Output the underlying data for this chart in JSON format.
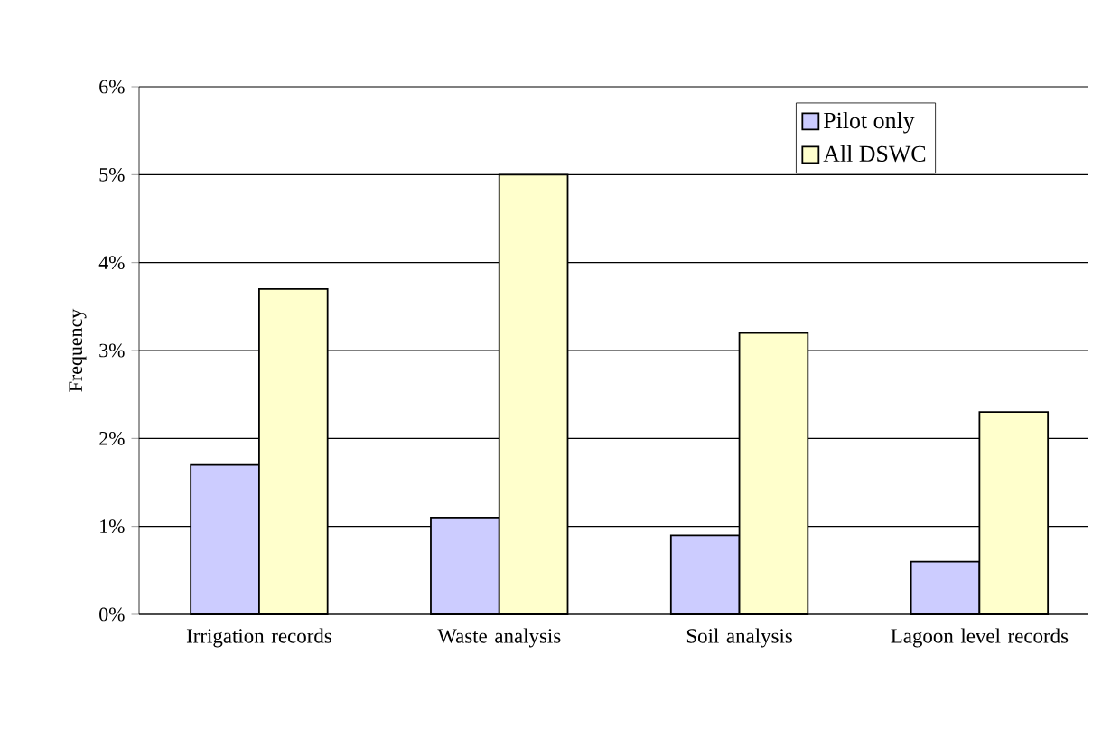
{
  "chart_data": {
    "type": "bar",
    "ylabel": "Frequency",
    "categories": [
      "Irrigation records",
      "Waste analysis",
      "Soil analysis",
      "Lagoon level records"
    ],
    "series": [
      {
        "name": "Pilot only",
        "color": "#ccccff",
        "values": [
          1.7,
          1.1,
          0.9,
          0.6
        ]
      },
      {
        "name": "All DSWC",
        "color": "#ffffcc",
        "values": [
          3.7,
          5.0,
          3.2,
          2.3
        ]
      }
    ],
    "ylim": [
      0,
      6
    ],
    "yticks": [
      {
        "value": 0,
        "label": "0%"
      },
      {
        "value": 1,
        "label": "1%"
      },
      {
        "value": 2,
        "label": "2%"
      },
      {
        "value": 3,
        "label": "3%"
      },
      {
        "value": 4,
        "label": "4%"
      },
      {
        "value": 5,
        "label": "5%"
      },
      {
        "value": 6,
        "label": "6%"
      }
    ],
    "grid": "y",
    "legend": "top right"
  }
}
